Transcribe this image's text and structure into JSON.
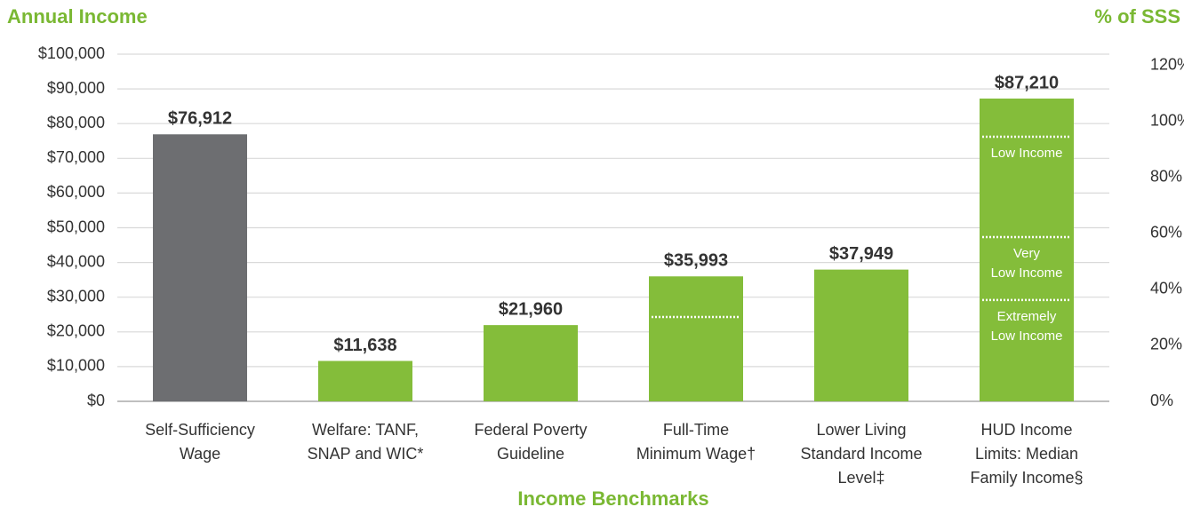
{
  "chart_data": {
    "type": "bar",
    "y_axis_title": "Annual Income",
    "y2_axis_title": "% of SSS",
    "x_axis_title": "Income Benchmarks",
    "categories": [
      [
        "Self-Sufficiency",
        "Wage"
      ],
      [
        "Welfare: TANF,",
        "SNAP and WIC*"
      ],
      [
        "Federal Poverty",
        "Guideline"
      ],
      [
        "Full-Time",
        "Minimum Wage†"
      ],
      [
        "Lower Living",
        "Standard Income",
        "Level‡"
      ],
      [
        "HUD Income",
        "Limits: Median",
        "Family Income§"
      ]
    ],
    "values": [
      76912,
      11638,
      21960,
      35993,
      37949,
      87210
    ],
    "value_labels": [
      "$76,912",
      "$11,638",
      "$21,960",
      "$35,993",
      "$37,949",
      "$87,210"
    ],
    "colors": [
      "#6d6e71",
      "#84bd3a",
      "#84bd3a",
      "#84bd3a",
      "#84bd3a",
      "#84bd3a"
    ],
    "ylim": [
      0,
      100000
    ],
    "yticks": [
      {
        "value": 0,
        "label": "$0"
      },
      {
        "value": 10000,
        "label": "$10,000"
      },
      {
        "value": 20000,
        "label": "$20,000"
      },
      {
        "value": 30000,
        "label": "$30,000"
      },
      {
        "value": 40000,
        "label": "$40,000"
      },
      {
        "value": 50000,
        "label": "$50,000"
      },
      {
        "value": 60000,
        "label": "$60,000"
      },
      {
        "value": 70000,
        "label": "$70,000"
      },
      {
        "value": 80000,
        "label": "$80,000"
      },
      {
        "value": 90000,
        "label": "$90,000"
      },
      {
        "value": 100000,
        "label": "$100,000"
      }
    ],
    "y2lim": [
      0,
      124
    ],
    "y2ticks": [
      {
        "value": 0,
        "label": "0%"
      },
      {
        "value": 20,
        "label": "20%"
      },
      {
        "value": 40,
        "label": "40%"
      },
      {
        "value": 60,
        "label": "60%"
      },
      {
        "value": 80,
        "label": "80%"
      },
      {
        "value": 100,
        "label": "100%"
      },
      {
        "value": 120,
        "label": "120%"
      }
    ],
    "grid": true,
    "annotations": [
      {
        "bar": 3,
        "value": 24300
      },
      {
        "bar": 5,
        "value": 76200,
        "label": [
          "Low Income"
        ]
      },
      {
        "bar": 5,
        "value": 47300,
        "label": [
          "Very",
          "Low Income"
        ]
      },
      {
        "bar": 5,
        "value": 29200,
        "label": [
          "Extremely",
          "Low Income"
        ]
      }
    ]
  }
}
